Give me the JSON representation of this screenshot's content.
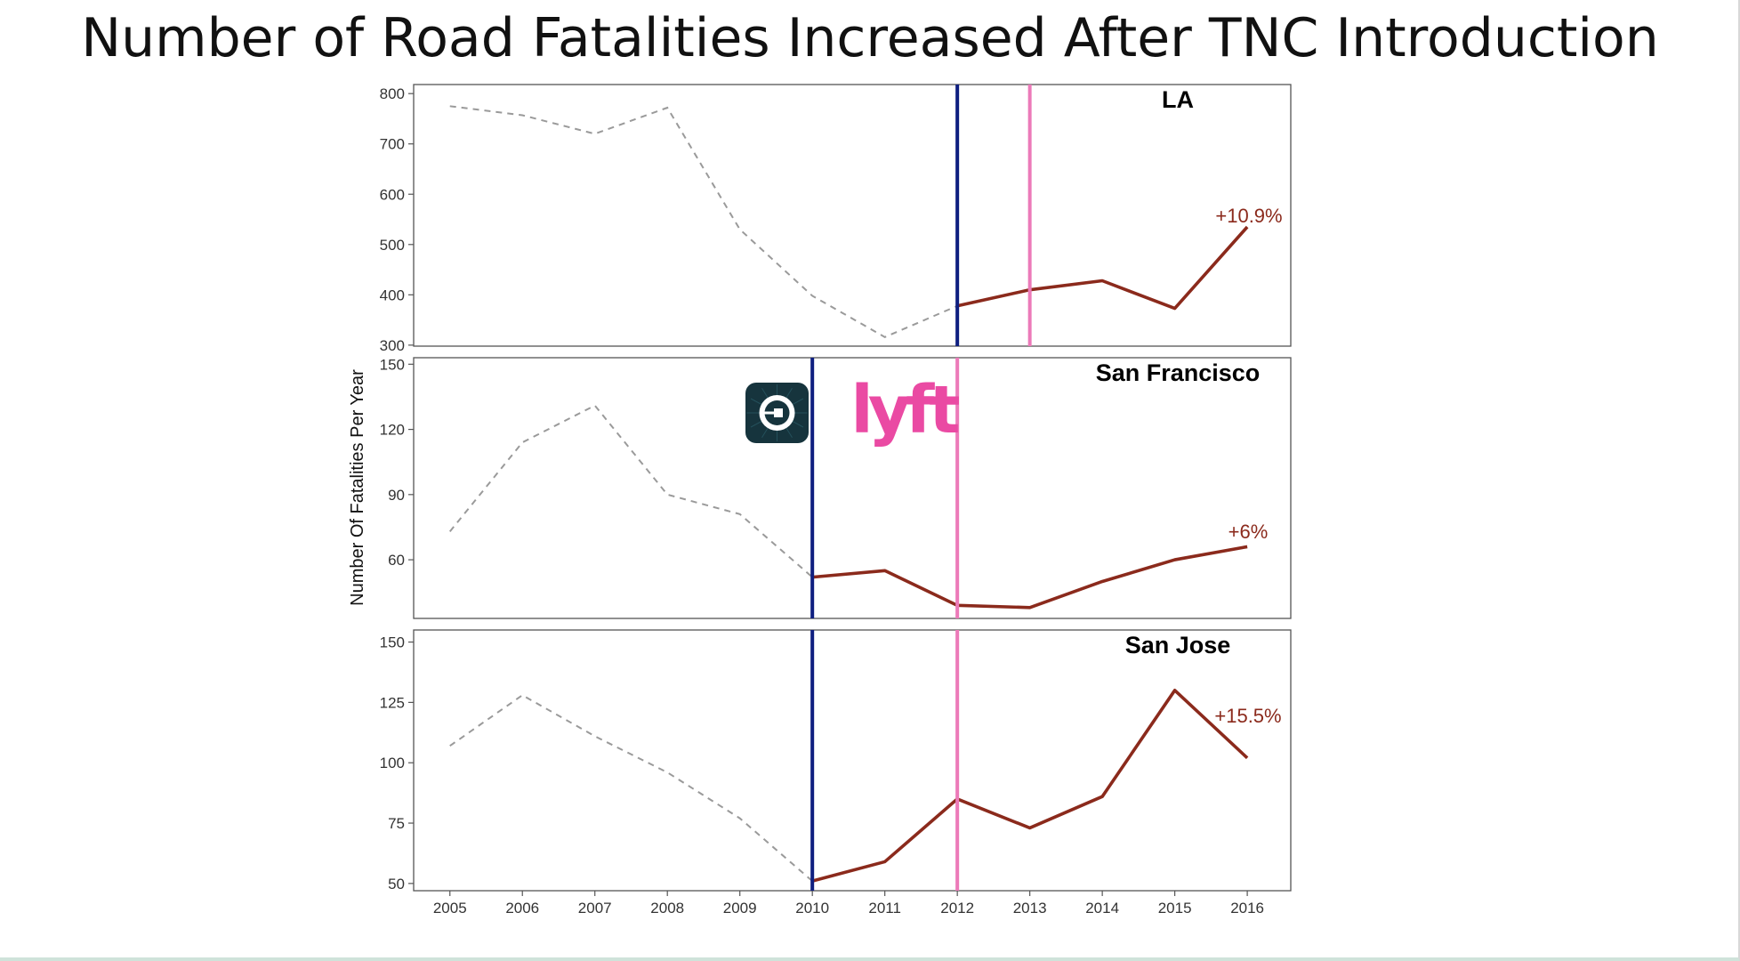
{
  "title": "Number of Road Fatalities Increased After TNC Introduction",
  "colors": {
    "pre_line": "#9a9a9a",
    "post_line": "#8b2a1c",
    "uber_line": "#0f1f80",
    "lyft_line": "#ec7ab9",
    "uber_logo_bg": "#16343d",
    "lyft_logo": "#ea4aa3"
  },
  "icons": {
    "uber": "uber-logo",
    "lyft": "lyft-logo"
  },
  "logos": {
    "lyft_text": "lyft"
  },
  "chart_data": {
    "type": "line",
    "ylabel": "Number Of Fatalities Per Year",
    "x": [
      2005,
      2006,
      2007,
      2008,
      2009,
      2010,
      2011,
      2012,
      2013,
      2014,
      2015,
      2016
    ],
    "panels": [
      {
        "title": "LA",
        "ylim": [
          298,
          818
        ],
        "yticks": [
          300,
          400,
          500,
          600,
          700,
          800
        ],
        "values": [
          775,
          757,
          720,
          772,
          530,
          398,
          316,
          378,
          410,
          428,
          373,
          535
        ],
        "uber_year": 2012,
        "lyft_year": 2013,
        "change_label": "+10.9%"
      },
      {
        "title": "San Francisco",
        "ylim": [
          33,
          153
        ],
        "yticks": [
          60,
          90,
          120,
          150
        ],
        "values": [
          73,
          114,
          131,
          90,
          81,
          52,
          55,
          39,
          38,
          50,
          60,
          66
        ],
        "uber_year": 2010,
        "lyft_year": 2012,
        "change_label": "+6%"
      },
      {
        "title": "San Jose",
        "ylim": [
          47,
          155
        ],
        "yticks": [
          50,
          75,
          100,
          125,
          150
        ],
        "values": [
          107,
          128,
          111,
          96,
          77,
          51,
          59,
          85,
          73,
          86,
          130,
          102
        ],
        "uber_year": 2010,
        "lyft_year": 2012,
        "change_label": "+15.5%"
      }
    ],
    "x_ticks": [
      "2005",
      "2006",
      "2007",
      "2008",
      "2009",
      "2010",
      "2011",
      "2012",
      "2013",
      "2014",
      "2015",
      "2016"
    ],
    "grid": false
  }
}
